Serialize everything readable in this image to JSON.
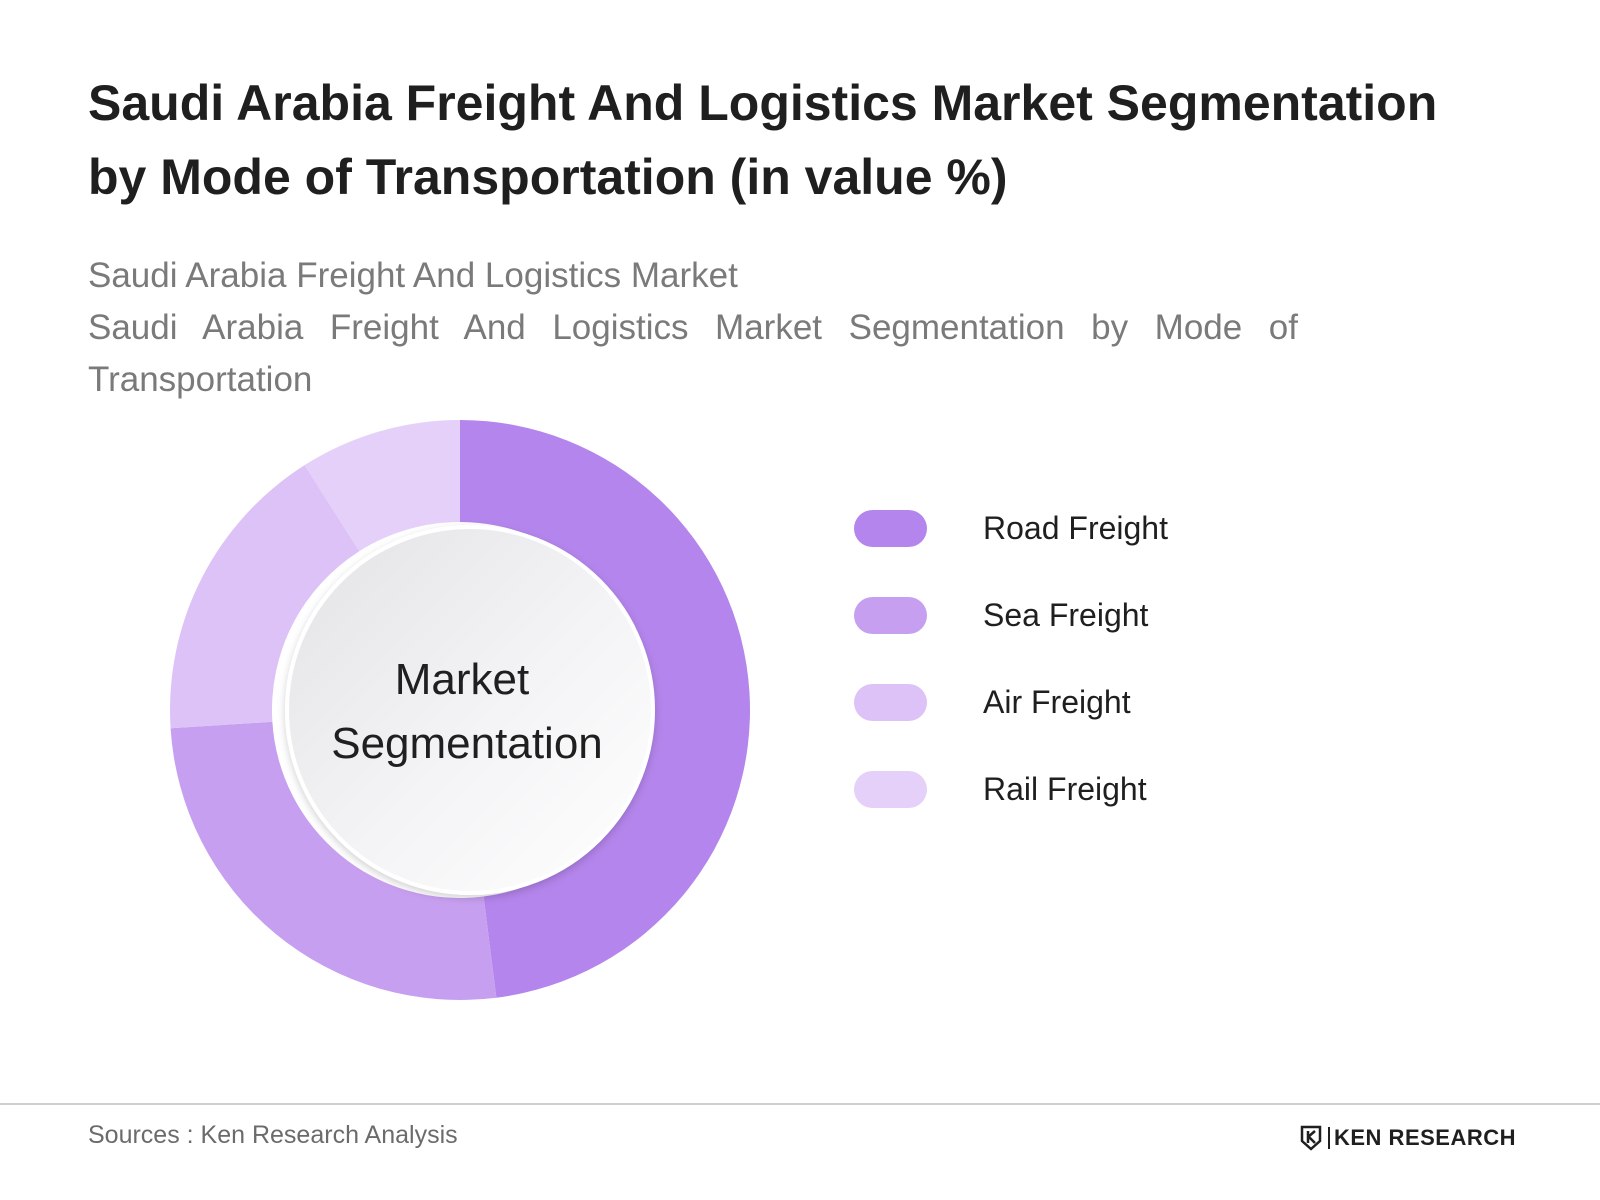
{
  "header": {
    "title": "Saudi Arabia Freight And Logistics Market Segmentation by Mode of Transportation (in value %)",
    "subtitle_line1": "Saudi Arabia Freight And Logistics Market",
    "subtitle_line2": "Saudi Arabia Freight And Logistics Market Segmentation by Mode of Transportation"
  },
  "chart_data": {
    "type": "pie",
    "variant": "donut",
    "center_label_line1": "Market",
    "center_label_line2": "Segmentation",
    "categories": [
      "Road Freight",
      "Sea Freight",
      "Air Freight",
      "Rail Freight"
    ],
    "values": [
      48,
      26,
      17,
      9
    ],
    "colors": [
      "#b485ec",
      "#c79ff0",
      "#dcc2f6",
      "#e4d0f8"
    ],
    "legend_position": "right",
    "start_angle": "top, clockwise"
  },
  "footer": {
    "source": "Sources : Ken Research Analysis",
    "brand": "KEN RESEARCH",
    "brand_logo": "ken-research-logo"
  }
}
